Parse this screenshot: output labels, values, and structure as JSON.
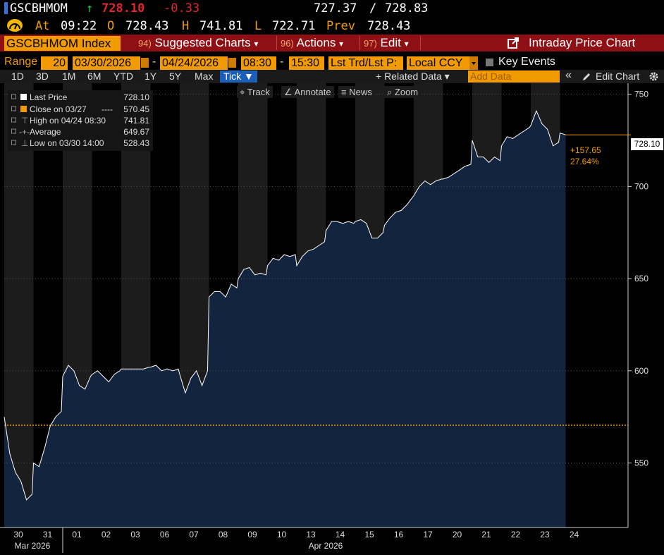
{
  "header": {
    "ticker": "GSCBHMOM",
    "arrow": "↑",
    "last": "728.10",
    "change": "-0.33",
    "bid": "727.37",
    "slash": "/",
    "ask": "728.83",
    "at_label": "At",
    "time": "09:22",
    "o_label": "O",
    "open": "728.43",
    "h_label": "H",
    "high": "741.81",
    "l_label": "L",
    "low": "722.71",
    "prev_label": "Prev",
    "prev": "728.43"
  },
  "menubar": {
    "security": "GSCBHMOM Index",
    "items": [
      {
        "num": "94)",
        "label": "Suggested Charts",
        "caret": "▾"
      },
      {
        "num": "96)",
        "label": "Actions",
        "caret": "▾"
      },
      {
        "num": "97)",
        "label": "Edit",
        "caret": "▾"
      }
    ],
    "title": "Intraday Price Chart"
  },
  "range": {
    "label": "Range",
    "period": "20",
    "start": "03/30/2026",
    "dash1": "-",
    "end": "04/24/2026",
    "time_start": "08:30",
    "dash2": "-",
    "time_end": "15:30",
    "field": "Lst Trd/Lst P:",
    "currency": "Local CCY",
    "key_events": "Key Events"
  },
  "timeframes": [
    "1D",
    "3D",
    "1M",
    "6M",
    "YTD",
    "1Y",
    "5Y",
    "Max"
  ],
  "tick_label": "Tick ▼",
  "related": "+ Related Data ▾",
  "add_data_placeholder": "Add Data",
  "collapse": "«",
  "edit_chart": "Edit Chart",
  "tools": [
    {
      "icon": "crosshair-icon",
      "glyph": "⌖",
      "label": "Track"
    },
    {
      "icon": "pencil-icon",
      "glyph": "∠",
      "label": "Annotate"
    },
    {
      "icon": "news-icon",
      "glyph": "≡",
      "label": "News"
    },
    {
      "icon": "zoom-icon",
      "glyph": "⌕",
      "label": "Zoom"
    }
  ],
  "legend": [
    {
      "label": "Last Price",
      "value": "728.10",
      "marker": "white-square"
    },
    {
      "label": "Close on 03/27",
      "value": "570.45",
      "marker": "orange-square",
      "dash": "----"
    },
    {
      "label": "High on 04/24 08:30",
      "value": "741.81",
      "marker": "high-marker"
    },
    {
      "label": "Average",
      "value": "649.67",
      "marker": "average-marker"
    },
    {
      "label": "Low on 03/30 14:00",
      "value": "528.43",
      "marker": "low-marker"
    }
  ],
  "annot": {
    "last_box": "728.10",
    "abs_change": "+157.65",
    "pct_change": "27.64%"
  },
  "colors": {
    "accent": "#f29b00",
    "area_fill": "#13243f",
    "line": "#ffffff",
    "session_band": "#1c1c1c",
    "menubar": "#8e1015",
    "neg_change": "#e0262c",
    "up_arrow": "#25c94a"
  },
  "chart_data": {
    "type": "area",
    "y_ticks": [
      550,
      600,
      650,
      700,
      750
    ],
    "ylim": [
      515,
      756
    ],
    "x_ticks": [
      "30",
      "31",
      "01",
      "02",
      "03",
      "06",
      "07",
      "08",
      "09",
      "10",
      "13",
      "14",
      "15",
      "16",
      "17",
      "20",
      "21",
      "22",
      "23",
      "24"
    ],
    "month_labels": [
      "Mar 2026",
      "Apr 2026"
    ],
    "reference_line": {
      "label": "Close on 03/27",
      "value": 570.45
    },
    "series": [
      {
        "name": "Last Price",
        "session_points": [
          [
            575,
            555,
            545,
            540,
            530,
            533
          ],
          [
            550,
            548,
            558,
            570,
            575,
            578
          ],
          [
            597,
            603,
            600,
            592,
            590,
            597
          ],
          [
            598,
            600,
            597,
            594,
            598,
            600
          ],
          [
            601,
            601,
            601,
            601,
            601,
            602
          ],
          [
            602,
            603,
            600,
            601,
            600,
            601
          ],
          [
            598,
            588,
            596,
            600,
            592,
            600
          ],
          [
            640,
            643,
            643,
            640,
            647,
            645
          ],
          [
            650,
            655,
            656,
            652,
            653,
            652
          ],
          [
            657,
            661,
            660,
            663,
            662,
            663
          ],
          [
            657,
            662,
            665,
            666,
            668,
            670
          ],
          [
            676,
            681,
            681,
            680,
            681,
            680
          ],
          [
            681,
            682,
            680,
            672,
            672,
            675
          ],
          [
            679,
            683,
            686,
            687,
            690,
            694
          ],
          [
            695,
            700,
            703,
            701,
            703,
            704
          ],
          [
            704,
            705,
            707,
            709,
            711,
            712
          ],
          [
            725,
            716,
            716,
            713,
            716,
            714
          ],
          [
            722,
            727,
            726,
            728,
            730,
            732
          ],
          [
            733,
            741,
            734,
            731,
            722,
            724
          ],
          [
            729,
            728
          ]
        ]
      }
    ]
  }
}
